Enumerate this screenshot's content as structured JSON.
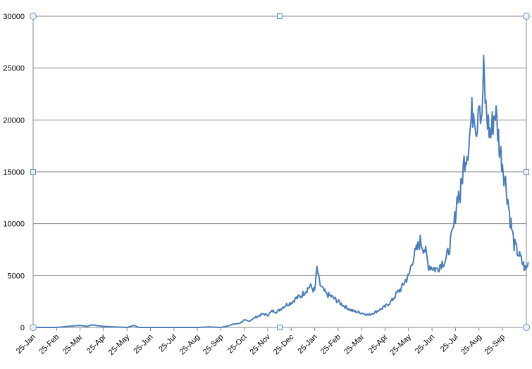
{
  "chart_data": {
    "type": "line",
    "title": "",
    "xlabel": "",
    "ylabel": "",
    "ylim": [
      0,
      30000
    ],
    "y_ticks": [
      0,
      5000,
      10000,
      15000,
      20000,
      25000,
      30000
    ],
    "x_tick_labels": [
      "25-Jan",
      "25-Feb",
      "25-Mar",
      "25-Apr",
      "25-May",
      "25-Jun",
      "25-Jul",
      "25-Aug",
      "25-Sep",
      "25-Oct",
      "25-Nov",
      "25-Dec",
      "25-Jan",
      "25-Feb",
      "25-Mar",
      "25-Apr",
      "25-May",
      "25-Jun",
      "25-Jul",
      "25-Aug",
      "25-Sep"
    ],
    "grid": "horizontal",
    "legend": "none",
    "line_color": "#4a7ebb",
    "series": [
      {
        "x_month_index": [
          0,
          1,
          1.7,
          2,
          2.3,
          2.5,
          3,
          3.5,
          4,
          4.3,
          4.5,
          5,
          6,
          7,
          7.5,
          8,
          8.3,
          8.5,
          8.8,
          9,
          9.2,
          9.4,
          9.6,
          9.8,
          10,
          10.2,
          10.4,
          10.6,
          10.8,
          11,
          11.2,
          11.4,
          11.6,
          11.8,
          12,
          12.1,
          12.2,
          12.3,
          12.5,
          12.7,
          13,
          13.3,
          13.6,
          14,
          14.3,
          14.6,
          15,
          15.3,
          15.5,
          15.7,
          15.85,
          16,
          16.2,
          16.3,
          16.5,
          16.7,
          16.85,
          17,
          17.2,
          17.4,
          17.6,
          17.75,
          17.9,
          18,
          18.1,
          18.2,
          18.3,
          18.4,
          18.5,
          18.6,
          18.7,
          18.8,
          18.9,
          19,
          19.1,
          19.2,
          19.3,
          19.4,
          19.5,
          19.6,
          19.7,
          19.8,
          19.9,
          20,
          20.1,
          20.2,
          20.3,
          20.4,
          20.5,
          20.6,
          20.7,
          20.8,
          20.9,
          21,
          21.1
        ],
        "values": [
          0,
          0,
          150,
          200,
          100,
          250,
          100,
          50,
          0,
          200,
          0,
          0,
          0,
          0,
          50,
          0,
          150,
          300,
          400,
          700,
          600,
          900,
          1100,
          1300,
          1200,
          1600,
          1500,
          1900,
          2200,
          2400,
          2800,
          3000,
          3500,
          4000,
          3500,
          5700,
          4300,
          3800,
          3200,
          3000,
          2500,
          2000,
          1600,
          1400,
          1200,
          1500,
          2000,
          2600,
          3300,
          3800,
          4500,
          4900,
          6800,
          7200,
          8300,
          7500,
          6000,
          5800,
          5600,
          6200,
          6500,
          7800,
          9200,
          11000,
          13000,
          12500,
          14800,
          16500,
          17000,
          18500,
          20500,
          21500,
          19000,
          23000,
          19000,
          24500,
          21000,
          19500,
          18500,
          20000,
          21000,
          19000,
          17000,
          16000,
          14500,
          13000,
          11000,
          9500,
          8000,
          7500,
          7000,
          6500,
          6000,
          5500,
          6300
        ]
      }
    ]
  }
}
